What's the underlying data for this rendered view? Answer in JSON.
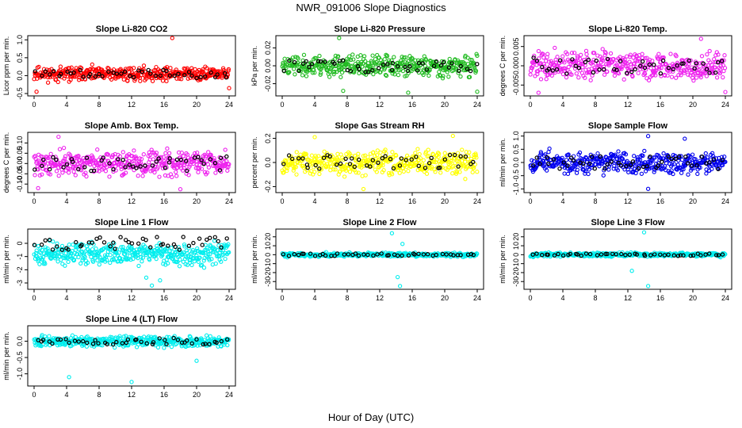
{
  "figure": {
    "title": "NWR_091006  Slope Diagnostics",
    "xlabel": "Hour of Day (UTC)"
  },
  "chart_data": [
    {
      "type": "scatter",
      "title": "Slope Li-820 CO2",
      "ylabel": "Licor ppm per min.",
      "color": "#ff0000",
      "xlim": [
        0,
        24
      ],
      "xticks": [
        "0",
        "4",
        "8",
        "12",
        "16",
        "20",
        "24"
      ],
      "ylim": [
        -0.5,
        1.05
      ],
      "yticks": [
        {
          "v": -0.5,
          "label": "-0.5"
        },
        {
          "v": 0,
          "label": "0.0"
        },
        {
          "v": 0.5,
          "label": "0.5"
        },
        {
          "v": 1,
          "label": "1.0"
        }
      ],
      "center": 0.05,
      "spread": 0.13,
      "outliers": [
        {
          "x": 17,
          "y": 1.05
        },
        {
          "x": 0.3,
          "y": -0.45
        },
        {
          "x": 24,
          "y": -0.35
        }
      ],
      "seed": 11
    },
    {
      "type": "scatter",
      "title": "Slope Li-820 Pressure",
      "ylabel": "kPa per min.",
      "color": "#22bb22",
      "xlim": [
        0,
        24
      ],
      "xticks": [
        "0",
        "4",
        "8",
        "12",
        "16",
        "20",
        "24"
      ],
      "ylim": [
        -0.031,
        0.031
      ],
      "yticks": [
        {
          "v": -0.02,
          "label": "-0.02"
        },
        {
          "v": 0,
          "label": "0.00"
        },
        {
          "v": 0.02,
          "label": "0.02"
        }
      ],
      "center": 0.0,
      "spread": 0.008,
      "outliers": [
        {
          "x": 7,
          "y": 0.031
        },
        {
          "x": 15.5,
          "y": -0.03
        },
        {
          "x": 24,
          "y": -0.029
        },
        {
          "x": 7.5,
          "y": -0.028
        }
      ],
      "seed": 23
    },
    {
      "type": "scatter",
      "title": "Slope Li-820 Temp.",
      "ylabel": "degrees C per min.",
      "color": "#ee22ee",
      "xlim": [
        0,
        24
      ],
      "xticks": [
        "0",
        "4",
        "8",
        "12",
        "16",
        "20",
        "24"
      ],
      "ylim": [
        -0.0072,
        0.0072
      ],
      "yticks": [
        {
          "v": -0.005,
          "label": "-0.005"
        },
        {
          "v": 0,
          "label": "0.000"
        },
        {
          "v": 0.005,
          "label": "0.005"
        }
      ],
      "center": 0.0,
      "spread": 0.0024,
      "outliers": [
        {
          "x": 21,
          "y": 0.007
        },
        {
          "x": 1,
          "y": -0.007
        },
        {
          "x": 24,
          "y": -0.0068
        }
      ],
      "seed": 37
    },
    {
      "type": "scatter",
      "title": "Slope Amb. Box Temp.",
      "ylabel": "degrees C per min.",
      "color": "#ee22ee",
      "xlim": [
        0,
        24
      ],
      "xticks": [
        "0",
        "4",
        "8",
        "12",
        "16",
        "20",
        "24"
      ],
      "ylim": [
        -0.13,
        0.14
      ],
      "yticks": [
        {
          "v": -0.1,
          "label": "-0.10"
        },
        {
          "v": -0.05,
          "label": "-0.05"
        },
        {
          "v": 0,
          "label": "0.00"
        },
        {
          "v": 0.05,
          "label": "0.05"
        },
        {
          "v": 0.1,
          "label": "0.10"
        }
      ],
      "center": 0.0,
      "spread": 0.04,
      "outliers": [
        {
          "x": 18,
          "y": -0.125
        },
        {
          "x": 0.5,
          "y": -0.12
        },
        {
          "x": 3,
          "y": 0.13
        }
      ],
      "seed": 41
    },
    {
      "type": "scatter",
      "title": "Slope Gas Stream RH",
      "ylabel": "percent per min.",
      "color": "#ffff00",
      "xlim": [
        0,
        24
      ],
      "xticks": [
        "0",
        "4",
        "8",
        "12",
        "16",
        "20",
        "24"
      ],
      "ylim": [
        -0.23,
        0.23
      ],
      "yticks": [
        {
          "v": -0.2,
          "label": "-0.2"
        },
        {
          "v": 0,
          "label": "0.0"
        },
        {
          "v": 0.2,
          "label": "0.2"
        }
      ],
      "center": 0.0,
      "spread": 0.07,
      "outliers": [
        {
          "x": 21,
          "y": 0.22
        },
        {
          "x": 4,
          "y": 0.21
        },
        {
          "x": 10,
          "y": -0.22
        }
      ],
      "seed": 53
    },
    {
      "type": "scatter",
      "title": "Slope Sample Flow",
      "ylabel": "ml/min per min.",
      "color": "#0000ee",
      "xlim": [
        0,
        24
      ],
      "xticks": [
        "0",
        "4",
        "8",
        "12",
        "16",
        "20",
        "24"
      ],
      "ylim": [
        -1.05,
        1.05
      ],
      "yticks": [
        {
          "v": -1,
          "label": "-1.0"
        },
        {
          "v": -0.5,
          "label": "-0.5"
        },
        {
          "v": 0,
          "label": "0.0"
        },
        {
          "v": 0.5,
          "label": "0.5"
        },
        {
          "v": 1,
          "label": "1.0"
        }
      ],
      "center": 0.0,
      "spread": 0.28,
      "outliers": [
        {
          "x": 14.5,
          "y": 1.0
        },
        {
          "x": 14.5,
          "y": -1.0
        },
        {
          "x": 19,
          "y": 0.9
        }
      ],
      "seed": 67
    },
    {
      "type": "scatter",
      "title": "Slope Line 1 Flow",
      "ylabel": "ml/min per min.",
      "color": "#00eeee",
      "xlim": [
        0,
        24
      ],
      "xticks": [
        "0",
        "4",
        "8",
        "12",
        "16",
        "20",
        "24"
      ],
      "ylim": [
        -3.3,
        0.9
      ],
      "yticks": [
        {
          "v": -3,
          "label": "-3"
        },
        {
          "v": -2,
          "label": "-2"
        },
        {
          "v": -1,
          "label": "-1"
        },
        {
          "v": 0,
          "label": "0"
        }
      ],
      "center": -0.8,
      "spread": 0.55,
      "outliers": [
        {
          "x": 14.5,
          "y": -3.2
        },
        {
          "x": 15.5,
          "y": -2.8
        },
        {
          "x": 13.8,
          "y": -2.6
        }
      ],
      "seed": 71
    },
    {
      "type": "scatter",
      "title": "Slope Line 2 Flow",
      "ylabel": "ml/min per min.",
      "color": "#00eeee",
      "xlim": [
        0,
        24
      ],
      "xticks": [
        "0",
        "4",
        "8",
        "12",
        "16",
        "20",
        "24"
      ],
      "ylim": [
        -36,
        26
      ],
      "yticks": [
        {
          "v": -30,
          "label": "-30"
        },
        {
          "v": -20,
          "label": "-20"
        },
        {
          "v": -10,
          "label": "-10"
        },
        {
          "v": 0,
          "label": "0"
        },
        {
          "v": 10,
          "label": "10"
        },
        {
          "v": 20,
          "label": "20"
        }
      ],
      "center": 0.0,
      "spread": 1.5,
      "outliers": [
        {
          "x": 14.5,
          "y": -35
        },
        {
          "x": 14.2,
          "y": -25
        },
        {
          "x": 13.5,
          "y": 24
        },
        {
          "x": 14.8,
          "y": 12
        }
      ],
      "seed": 83
    },
    {
      "type": "scatter",
      "title": "Slope Line 3 Flow",
      "ylabel": "ml/min per min.",
      "color": "#00eeee",
      "xlim": [
        0,
        24
      ],
      "xticks": [
        "0",
        "4",
        "8",
        "12",
        "16",
        "20",
        "24"
      ],
      "ylim": [
        -36,
        26
      ],
      "yticks": [
        {
          "v": -30,
          "label": "-30"
        },
        {
          "v": -20,
          "label": "-20"
        },
        {
          "v": -10,
          "label": "-10"
        },
        {
          "v": 0,
          "label": "0"
        },
        {
          "v": 10,
          "label": "10"
        },
        {
          "v": 20,
          "label": "20"
        }
      ],
      "center": 0.0,
      "spread": 1.5,
      "outliers": [
        {
          "x": 14.5,
          "y": -35
        },
        {
          "x": 14,
          "y": 25
        },
        {
          "x": 12.5,
          "y": -18
        }
      ],
      "seed": 97
    },
    {
      "type": "scatter",
      "title": "Slope Line 4 (LT) Flow",
      "ylabel": "ml/min per min.",
      "color": "#00eeee",
      "xlim": [
        0,
        24
      ],
      "xticks": [
        "0",
        "4",
        "8",
        "12",
        "16",
        "20",
        "24"
      ],
      "ylim": [
        -1.3,
        0.4
      ],
      "yticks": [
        {
          "v": -1,
          "label": "-1.0"
        },
        {
          "v": -0.5,
          "label": "-0.5"
        },
        {
          "v": 0,
          "label": "0.0"
        }
      ],
      "center": 0.0,
      "spread": 0.11,
      "outliers": [
        {
          "x": 4.3,
          "y": -1.1
        },
        {
          "x": 12,
          "y": -1.25
        },
        {
          "x": 20,
          "y": -0.6
        }
      ],
      "seed": 101
    }
  ]
}
